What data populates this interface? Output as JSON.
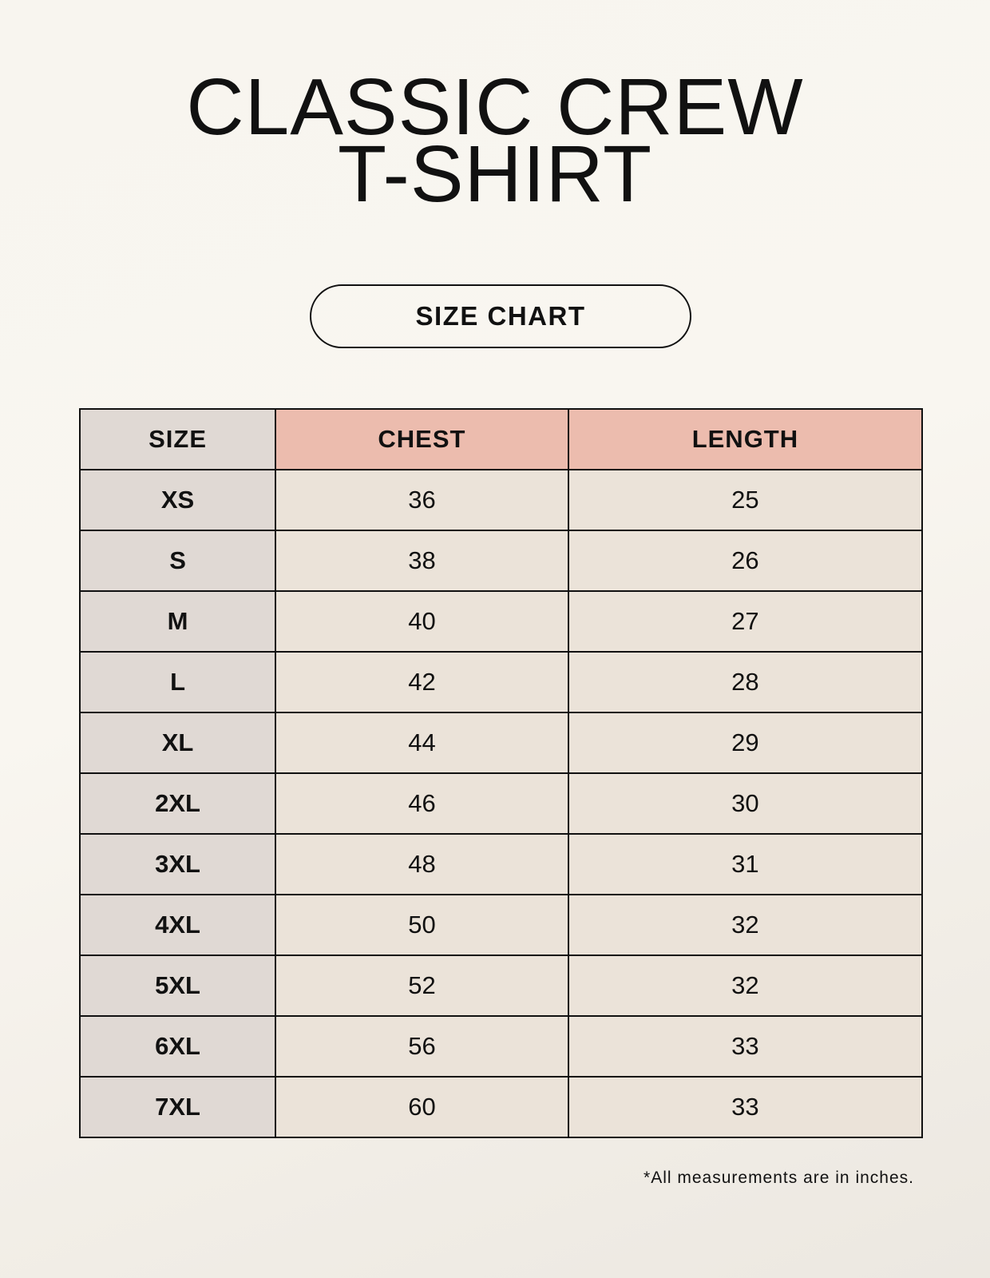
{
  "title": {
    "line1": "CLASSIC CREW",
    "line2": "T-SHIRT"
  },
  "badge": "SIZE CHART",
  "colors": {
    "size_column": "#e0d9d4",
    "measure_header": "#ecbcae",
    "value_cells": "#ebe3d9"
  },
  "table": {
    "headers": [
      "SIZE",
      "CHEST",
      "LENGTH"
    ],
    "rows": [
      [
        "XS",
        "36",
        "25"
      ],
      [
        "S",
        "38",
        "26"
      ],
      [
        "M",
        "40",
        "27"
      ],
      [
        "L",
        "42",
        "28"
      ],
      [
        "XL",
        "44",
        "29"
      ],
      [
        "2XL",
        "46",
        "30"
      ],
      [
        "3XL",
        "48",
        "31"
      ],
      [
        "4XL",
        "50",
        "32"
      ],
      [
        "5XL",
        "52",
        "32"
      ],
      [
        "6XL",
        "56",
        "33"
      ],
      [
        "7XL",
        "60",
        "33"
      ]
    ]
  },
  "footnote": "*All measurements are in inches."
}
